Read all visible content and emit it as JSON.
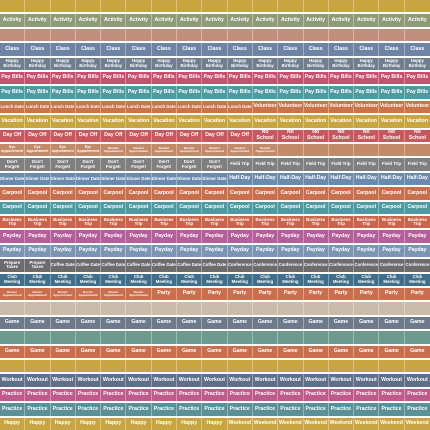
{
  "rows": [
    {
      "color": "#c9a541",
      "labels": [
        "",
        "",
        "",
        "",
        "",
        "",
        "",
        "",
        "",
        "",
        "",
        "",
        "",
        "",
        "",
        "",
        ""
      ]
    },
    {
      "color": "#8f9a78",
      "labels": [
        "Activity",
        "Activity",
        "Activity",
        "Activity",
        "Activity",
        "Activity",
        "Activity",
        "Activity",
        "Activity",
        "Activity",
        "Activity",
        "Activity",
        "Activity",
        "Activity",
        "Activity",
        "Activity",
        "Activity"
      ]
    },
    {
      "color": "#c08f7c",
      "labels": [
        "",
        "",
        "",
        "",
        "",
        "",
        "",
        "",
        "",
        "",
        "",
        "",
        "",
        "",
        "",
        "",
        ""
      ]
    },
    {
      "color": "#6d84a4",
      "labels": [
        "Class",
        "Class",
        "Class",
        "Class",
        "Class",
        "Class",
        "Class",
        "Class",
        "Class",
        "Class",
        "Class",
        "Class",
        "Class",
        "Class",
        "Class",
        "Class",
        "Class"
      ]
    },
    {
      "color": "#6f7f8f",
      "labels": [
        "Happy Birthday",
        "Happy Birthday",
        "Happy Birthday",
        "Happy Birthday",
        "Happy Birthday",
        "Happy Birthday",
        "Happy Birthday",
        "Happy Birthday",
        "Happy Birthday",
        "Happy Birthday",
        "Happy Birthday",
        "Happy Birthday",
        "Happy Birthday",
        "Happy Birthday",
        "Happy Birthday",
        "Happy Birthday",
        "Happy Birthday"
      ]
    },
    {
      "color": "#c94f6e",
      "labels": [
        "Pay Bills",
        "Pay Bills",
        "Pay Bills",
        "Pay Bills",
        "Pay Bills",
        "Pay Bills",
        "Pay Bills",
        "Pay Bills",
        "Pay Bills",
        "Pay Bills",
        "Pay Bills",
        "Pay Bills",
        "Pay Bills",
        "Pay Bills",
        "Pay Bills",
        "Pay Bills",
        "Pay Bills"
      ]
    },
    {
      "color": "#4f9aa2",
      "labels": [
        "Pay Bills",
        "Pay Bills",
        "Pay Bills",
        "Pay Bills",
        "Pay Bills",
        "Pay Bills",
        "Pay Bills",
        "Pay Bills",
        "Pay Bills",
        "Pay Bills",
        "Pay Bills",
        "Pay Bills",
        "Pay Bills",
        "Pay Bills",
        "Pay Bills",
        "Pay Bills",
        "Pay Bills"
      ]
    },
    {
      "color": "#c9744a",
      "labels": [
        "Lunch Date",
        "Lunch Date",
        "Lunch Date",
        "Lunch Date",
        "Lunch Date",
        "Lunch Date",
        "Lunch Date",
        "Lunch Date",
        "Lunch Date",
        "Lunch Date",
        "Volunteer",
        "Volunteer",
        "Volunteer",
        "Volunteer",
        "Volunteer",
        "Volunteer",
        "Volunteer"
      ]
    },
    {
      "color": "#c9a541",
      "labels": [
        "Vacation",
        "Vacation",
        "Vacation",
        "Vacation",
        "Vacation",
        "Vacation",
        "Vacation",
        "Vacation",
        "Vacation",
        "Vacation",
        "Vacation",
        "Vacation",
        "Vacation",
        "Vacation",
        "Vacation",
        "Vacation",
        "Vacation"
      ]
    },
    {
      "color": "#c9575e",
      "labels": [
        "Day Off",
        "Day Off",
        "Day Off",
        "Day Off",
        "Day Off",
        "Day Off",
        "Day Off",
        "Day Off",
        "Day Off",
        "Day Off",
        "No School",
        "No School",
        "No School",
        "No School",
        "No School",
        "No School",
        "No School"
      ]
    },
    {
      "color": "#c28a68",
      "labels": [
        "Eye Appointment",
        "Eye Appointment",
        "Eye Appointment",
        "Eye Appointment",
        "Dentist Appointment",
        "Dentist Appointment",
        "Dentist Appointment",
        "Dentist Appointment",
        "Dentist Appointment",
        "Dentist Appointment",
        "Dentist Appointment",
        "",
        "",
        "",
        "",
        "",
        ""
      ]
    },
    {
      "color": "#7f7f7f",
      "labels": [
        "Don't Forget!",
        "Don't Forget!",
        "Don't Forget!",
        "Don't Forget!",
        "Don't Forget!",
        "Don't Forget!",
        "Don't Forget!",
        "Don't Forget!",
        "Don't Forget!",
        "Field Trip",
        "Field Trip",
        "Field Trip",
        "Field Trip",
        "Field Trip",
        "Field Trip",
        "Field Trip",
        "Field Trip"
      ]
    },
    {
      "color": "#6b8ab0",
      "labels": [
        "Dinner Date",
        "Dinner Date",
        "Dinner Date",
        "Dinner Date",
        "Dinner Date",
        "Dinner Date",
        "Dinner Date",
        "Dinner Date",
        "Dinner Date",
        "Half-Day",
        "Half-Day",
        "Half-Day",
        "Half-Day",
        "Half-Day",
        "Half-Day",
        "Half-Day",
        "Half-Day"
      ]
    },
    {
      "color": "#c96f4e",
      "labels": [
        "Carpool",
        "Carpool",
        "Carpool",
        "Carpool",
        "Carpool",
        "Carpool",
        "Carpool",
        "Carpool",
        "Carpool",
        "Carpool",
        "Carpool",
        "Carpool",
        "Carpool",
        "Carpool",
        "Carpool",
        "Carpool",
        "Carpool"
      ]
    },
    {
      "color": "#4f9aa2",
      "labels": [
        "Carpool",
        "Carpool",
        "Carpool",
        "Carpool",
        "Carpool",
        "Carpool",
        "Carpool",
        "Carpool",
        "Carpool",
        "Carpool",
        "Carpool",
        "Carpool",
        "Carpool",
        "Carpool",
        "Carpool",
        "Carpool",
        "Carpool"
      ]
    },
    {
      "color": "#c96548",
      "labels": [
        "Business Trip",
        "Business Trip",
        "Business Trip",
        "Business Trip",
        "Business Trip",
        "Business Trip",
        "Business Trip",
        "Business Trip",
        "Business Trip",
        "Business Trip",
        "Business Trip",
        "Business Trip",
        "Business Trip",
        "Business Trip",
        "Business Trip",
        "Business Trip",
        "Business Trip"
      ]
    },
    {
      "color": "#b45e9a",
      "labels": [
        "Payday",
        "Payday",
        "Payday",
        "Payday",
        "Payday",
        "Payday",
        "Payday",
        "Payday",
        "Payday",
        "Payday",
        "Payday",
        "Payday",
        "Payday",
        "Payday",
        "Payday",
        "Payday",
        "Payday"
      ]
    },
    {
      "color": "#7b95b5",
      "labels": [
        "Payday",
        "Payday",
        "Payday",
        "Payday",
        "Payday",
        "Payday",
        "Payday",
        "Payday",
        "Payday",
        "Payday",
        "Payday",
        "Payday",
        "Payday",
        "Payday",
        "Payday",
        "Payday",
        "Payday"
      ]
    },
    {
      "color": "#6c6c6c",
      "labels": [
        "Prepare Taxes",
        "Prepare Taxes",
        "Coffee Date",
        "Coffee Date",
        "Coffee Date",
        "Coffee Date",
        "Coffee Date",
        "Coffee Date",
        "Coffee Date",
        "Conference",
        "Conference",
        "Conference",
        "Conference",
        "Conference",
        "Conference",
        "Conference",
        "Conference"
      ]
    },
    {
      "color": "#3f6f8a",
      "labels": [
        "Club Meeting",
        "Club Meeting",
        "Club Meeting",
        "Club Meeting",
        "Club Meeting",
        "Club Meeting",
        "Club Meeting",
        "Club Meeting",
        "Club Meeting",
        "Club Meeting",
        "Club Meeting",
        "Club Meeting",
        "Club Meeting",
        "Club Meeting",
        "Club Meeting",
        "Club Meeting",
        "Club Meeting"
      ]
    },
    {
      "color": "#c96f4e",
      "labels": [
        "Doctor Appointment",
        "Doctor Appointment",
        "Doctor Appointment",
        "Doctor Appointment",
        "Doctor Appointment",
        "Doctor Appointment",
        "Party",
        "Party",
        "Party",
        "Party",
        "Party",
        "Party",
        "Party",
        "Party",
        "Party",
        "Party",
        "Party"
      ]
    },
    {
      "color": "#c9bca8",
      "labels": [
        "",
        "",
        "",
        "",
        "",
        "",
        "",
        "",
        "",
        "",
        "",
        "",
        "",
        "",
        "",
        "",
        ""
      ]
    },
    {
      "color": "#6d7a8c",
      "labels": [
        "Game",
        "Game",
        "Game",
        "Game",
        "Game",
        "Game",
        "Game",
        "Game",
        "Game",
        "Game",
        "Game",
        "Game",
        "Game",
        "Game",
        "Game",
        "Game",
        "Game"
      ]
    },
    {
      "color": "#6d9a8c",
      "labels": [
        "",
        "",
        "",
        "",
        "",
        "",
        "",
        "",
        "",
        "",
        "",
        "",
        "",
        "",
        "",
        "",
        ""
      ]
    },
    {
      "color": "#c96f4e",
      "labels": [
        "Game",
        "Game",
        "Game",
        "Game",
        "Game",
        "Game",
        "Game",
        "Game",
        "Game",
        "Game",
        "Game",
        "Game",
        "Game",
        "Game",
        "Game",
        "Game",
        "Game"
      ]
    },
    {
      "color": "#c9a541",
      "labels": [
        "",
        "",
        "",
        "",
        "",
        "",
        "",
        "",
        "",
        "",
        "",
        "",
        "",
        "",
        "",
        "",
        ""
      ]
    },
    {
      "color": "#5f6f8a",
      "labels": [
        "Workout",
        "Workout",
        "Workout",
        "Workout",
        "Workout",
        "Workout",
        "Workout",
        "Workout",
        "Workout",
        "Workout",
        "Workout",
        "Workout",
        "Workout",
        "Workout",
        "Workout",
        "Workout",
        "Workout"
      ]
    },
    {
      "color": "#c05a8a",
      "labels": [
        "Practice",
        "Practice",
        "Practice",
        "Practice",
        "Practice",
        "Practice",
        "Practice",
        "Practice",
        "Practice",
        "Practice",
        "Practice",
        "Practice",
        "Practice",
        "Practice",
        "Practice",
        "Practice",
        "Practice"
      ]
    },
    {
      "color": "#5a9098",
      "labels": [
        "Practice",
        "Practice",
        "Practice",
        "Practice",
        "Practice",
        "Practice",
        "Practice",
        "Practice",
        "Practice",
        "Practice",
        "Practice",
        "Practice",
        "Practice",
        "Practice",
        "Practice",
        "Practice",
        "Practice"
      ]
    },
    {
      "color": "#c9a541",
      "labels": [
        "Happy",
        "Happy",
        "Happy",
        "Happy",
        "Happy",
        "Happy",
        "Happy",
        "Happy",
        "Happy",
        "Weekend",
        "Weekend",
        "Weekend",
        "Weekend",
        "Weekend",
        "Weekend",
        "Weekend",
        "Weekend"
      ]
    }
  ]
}
